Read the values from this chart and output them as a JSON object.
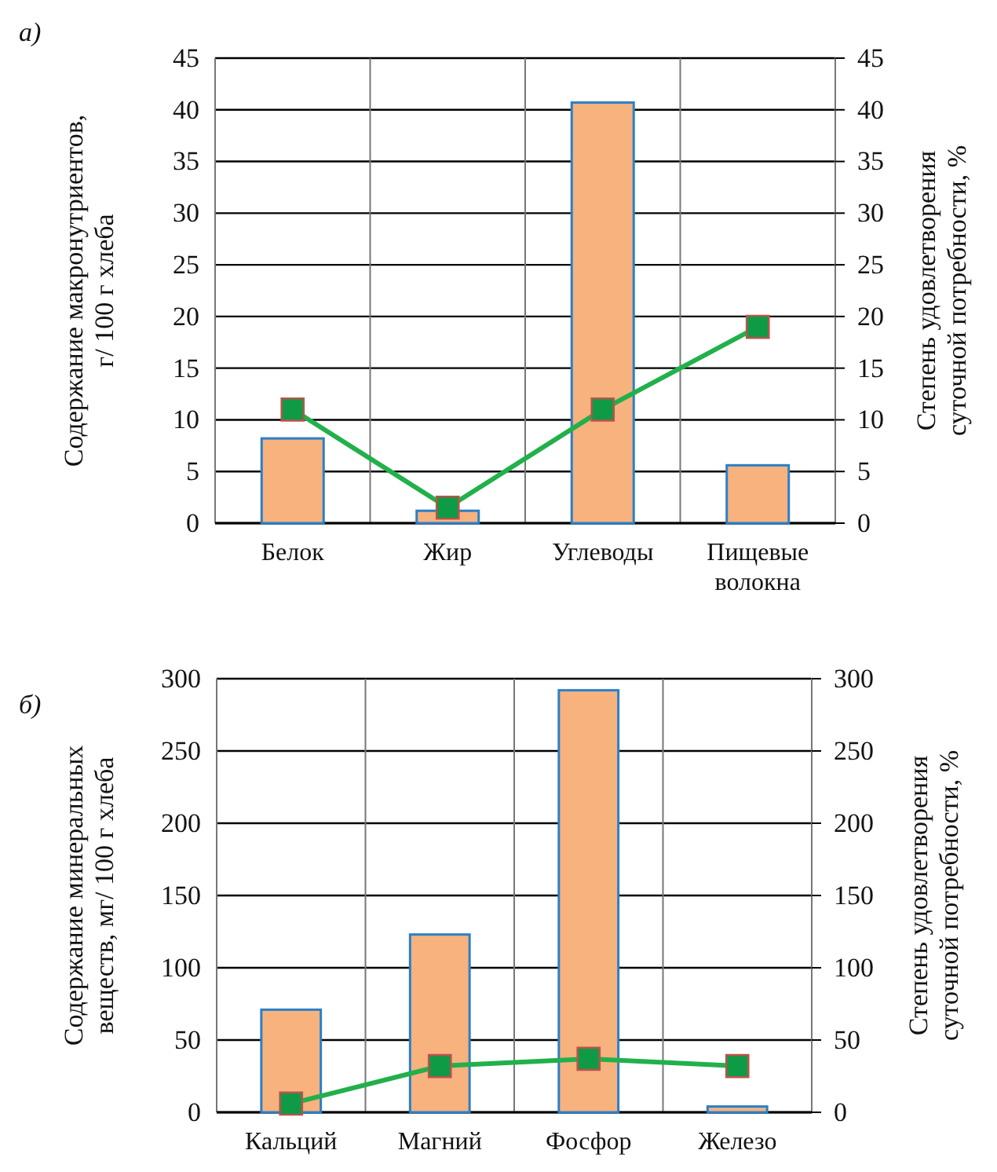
{
  "chart_data": [
    {
      "type": "bar",
      "title": "а)",
      "categories": [
        "Белок",
        "Жир",
        "Углеводы",
        "Пищевые волокна"
      ],
      "ylabel": "Содержание макронутриентов,\nг/ 100 г хлеба",
      "y2label": "Степень удовлетворения\nсуточной потребности, %",
      "ylim": [
        0,
        45
      ],
      "yticks": [
        0,
        5,
        10,
        15,
        20,
        25,
        30,
        35,
        40,
        45
      ],
      "y2lim": [
        0,
        45
      ],
      "y2ticks": [
        0,
        5,
        10,
        15,
        20,
        25,
        30,
        35,
        40,
        45
      ],
      "grid": true,
      "marker": "square",
      "line_style": "solid",
      "series": [
        {
          "color": "#f7b27e",
          "values": [
            8.2,
            1.2,
            40.7,
            5.6
          ]
        },
        {
          "type": "line",
          "axis": "y2",
          "color": "#22b04b",
          "values": [
            11,
            1.5,
            11,
            19
          ]
        }
      ]
    },
    {
      "type": "bar",
      "title": "б)",
      "categories": [
        "Кальций",
        "Магний",
        "Фосфор",
        "Железо"
      ],
      "ylabel": "Содержание минеральных\nвеществ, мг/ 100 г хлеба",
      "y2label": "Степень удовлетворения\nсуточной потребности, %",
      "ylim": [
        0,
        300
      ],
      "yticks": [
        0,
        50,
        100,
        150,
        200,
        250,
        300
      ],
      "y2lim": [
        0,
        300
      ],
      "y2ticks": [
        0,
        50,
        100,
        150,
        200,
        250,
        300
      ],
      "grid": true,
      "marker": "square",
      "line_style": "solid",
      "series": [
        {
          "color": "#f7b27e",
          "values": [
            71,
            123,
            292,
            4
          ]
        },
        {
          "type": "line",
          "axis": "y2",
          "color": "#22b04b",
          "values": [
            6,
            32,
            37,
            32
          ]
        }
      ]
    }
  ]
}
